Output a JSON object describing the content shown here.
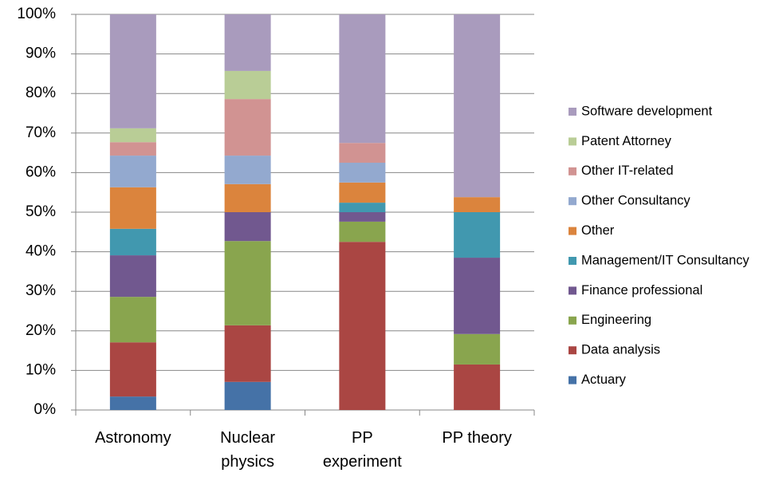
{
  "chart_data": {
    "type": "stacked_bar",
    "categories": [
      "Astronomy",
      "Nuclear physics",
      "PP experiment",
      "PP theory"
    ],
    "series": [
      {
        "name": "Actuary",
        "color": "#4572a7",
        "values": [
          3.4,
          7.1,
          0,
          0
        ]
      },
      {
        "name": "Data analysis",
        "color": "#aa4643",
        "values": [
          13.7,
          14.3,
          42.5,
          11.5
        ]
      },
      {
        "name": "Engineering",
        "color": "#89a54e",
        "values": [
          11.5,
          21.3,
          5.1,
          7.7
        ]
      },
      {
        "name": "Finance professional",
        "color": "#71588f",
        "values": [
          10.5,
          7.3,
          2.4,
          19.3
        ]
      },
      {
        "name": "Management/IT Consultancy",
        "color": "#4198af",
        "values": [
          6.7,
          0,
          2.4,
          11.5
        ]
      },
      {
        "name": "Other",
        "color": "#db843d",
        "values": [
          10.5,
          7.1,
          5.1,
          3.8
        ]
      },
      {
        "name": "Other Consultancy",
        "color": "#93a9cf",
        "values": [
          8.0,
          7.2,
          5.0,
          0
        ]
      },
      {
        "name": "Other IT-related",
        "color": "#d19392",
        "values": [
          3.4,
          14.3,
          5.0,
          0
        ]
      },
      {
        "name": "Patent Attorney",
        "color": "#b9cd96",
        "values": [
          3.5,
          7.1,
          0,
          0
        ]
      },
      {
        "name": "Software development",
        "color": "#a99bbd",
        "values": [
          28.8,
          14.3,
          32.5,
          46.2
        ]
      }
    ],
    "ylim": [
      0,
      100
    ],
    "yticks": [
      {
        "value": 0,
        "label": "0%"
      },
      {
        "value": 10,
        "label": "10%"
      },
      {
        "value": 20,
        "label": "20%"
      },
      {
        "value": 30,
        "label": "30%"
      },
      {
        "value": 40,
        "label": "40%"
      },
      {
        "value": 50,
        "label": "50%"
      },
      {
        "value": 60,
        "label": "60%"
      },
      {
        "value": 70,
        "label": "70%"
      },
      {
        "value": 80,
        "label": "80%"
      },
      {
        "value": 90,
        "label": "90%"
      },
      {
        "value": 100,
        "label": "100%"
      }
    ],
    "grid": true,
    "legend": "right"
  }
}
